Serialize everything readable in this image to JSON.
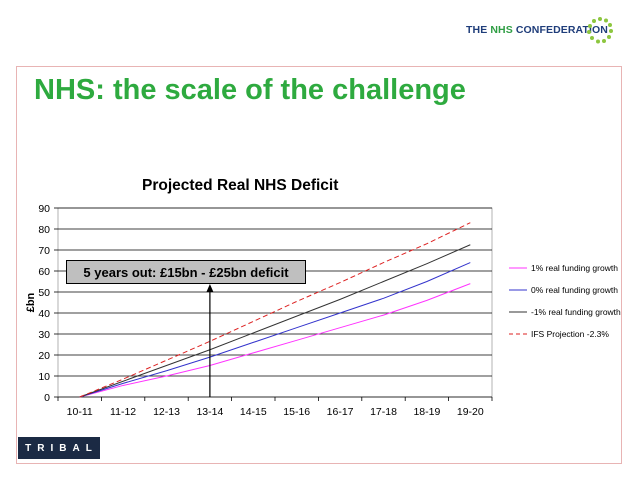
{
  "header": {
    "logo_prefix": "THE ",
    "logo_nhs": "NHS",
    "logo_suffix": " CONFEDERATION"
  },
  "slide_title": "NHS: the scale of the challenge",
  "footer": {
    "logo_text": "TRIBAL"
  },
  "colors": {
    "title_green": "#2eaa3f",
    "frame_border": "#e8b4b4",
    "footer_bg": "#1b2a44"
  },
  "chart_data": {
    "type": "line",
    "title": "Projected Real NHS Deficit",
    "xlabel": "",
    "ylabel": "£bn",
    "ylim": [
      0,
      90
    ],
    "yticks": [
      0,
      10,
      20,
      30,
      40,
      50,
      60,
      70,
      80,
      90
    ],
    "grid": true,
    "legend_position": "right",
    "categories": [
      "10-11",
      "11-12",
      "12-13",
      "13-14",
      "14-15",
      "15-16",
      "16-17",
      "17-18",
      "18-19",
      "19-20"
    ],
    "series": [
      {
        "name": "1% real funding growth",
        "color": "#ff33ff",
        "dashed": false,
        "values": [
          0,
          5.5,
          10,
          15,
          21,
          27,
          33,
          39,
          46,
          54
        ]
      },
      {
        "name": "0% real  funding growth",
        "color": "#3333cc",
        "dashed": false,
        "values": [
          0,
          6.5,
          12.5,
          19,
          26,
          33,
          40,
          47,
          55,
          64
        ]
      },
      {
        "name": "-1% real funding growth",
        "color": "#333333",
        "dashed": false,
        "values": [
          0,
          7.5,
          15,
          22.5,
          30.5,
          38.5,
          46.5,
          55,
          63.5,
          72.5
        ]
      },
      {
        "name": "IFS Projection -2.3%",
        "color": "#dd2222",
        "dashed": true,
        "values": [
          0,
          8.5,
          17.5,
          26.5,
          36,
          45.5,
          54.5,
          64,
          73,
          83
        ]
      }
    ],
    "annotations": [
      {
        "text": "5 years out: £15bn - £25bn deficit",
        "arrow_to_category": "13-14"
      }
    ]
  }
}
